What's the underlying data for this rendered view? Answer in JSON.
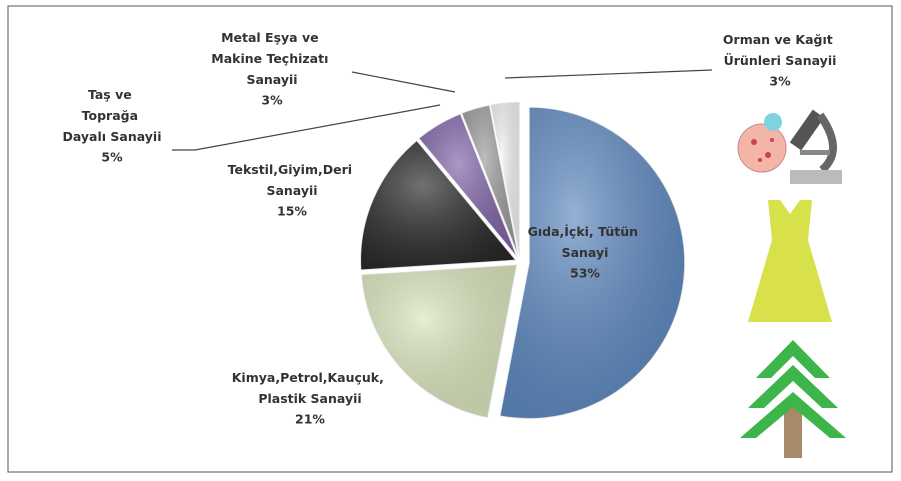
{
  "chart_data": {
    "type": "pie",
    "categories": [
      "Gıda,İçki, Tütün Sanayi",
      "Kimya,Petrol,Kauçuk, Plastik Sanayii",
      "Tekstil,Giyim,Deri Sanayii",
      "Taş ve Toprağa Dayalı Sanayii",
      "Metal Eşya ve Makine Teçhizatı Sanayii",
      "Orman ve Kağıt Ürünleri Sanayii"
    ],
    "values": [
      53,
      21,
      15,
      5,
      3,
      3
    ],
    "value_labels": [
      "53%",
      "21%",
      "15%",
      "5%",
      "3%",
      "3%"
    ],
    "colors": [
      "#5b87bf",
      "#d9e5bc",
      "#262626",
      "#7f62a8",
      "#9a9a9a",
      "#f2f2f2"
    ]
  }
}
